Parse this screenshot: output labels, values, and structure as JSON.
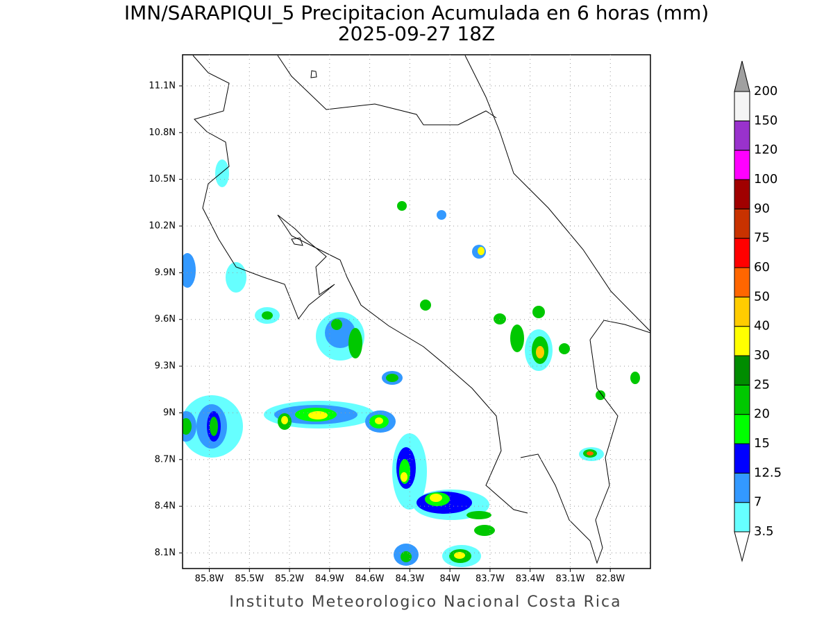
{
  "title": "IMN/SARAPIQUI_5 Precipitacion Acumulada en 6 horas (mm)",
  "subtitle": "2025-09-27 18Z",
  "footer": "Instituto Meteorologico Nacional Costa Rica",
  "map": {
    "xlim": [
      -86.0,
      -82.5
    ],
    "ylim": [
      8.0,
      11.3
    ],
    "yticks": [
      {
        "value": 11.1,
        "label": "11.1N"
      },
      {
        "value": 10.8,
        "label": "10.8N"
      },
      {
        "value": 10.5,
        "label": "10.5N"
      },
      {
        "value": 10.2,
        "label": "10.2N"
      },
      {
        "value": 9.9,
        "label": "9.9N"
      },
      {
        "value": 9.6,
        "label": "9.6N"
      },
      {
        "value": 9.3,
        "label": "9.3N"
      },
      {
        "value": 9.0,
        "label": "9N"
      },
      {
        "value": 8.7,
        "label": "8.7N"
      },
      {
        "value": 8.4,
        "label": "8.4N"
      },
      {
        "value": 8.1,
        "label": "8.1N"
      }
    ],
    "xticks": [
      {
        "value": -85.8,
        "label": "85.8W"
      },
      {
        "value": -85.5,
        "label": "85.5W"
      },
      {
        "value": -85.2,
        "label": "85.2W"
      },
      {
        "value": -84.9,
        "label": "84.9W"
      },
      {
        "value": -84.6,
        "label": "84.6W"
      },
      {
        "value": -84.3,
        "label": "84.3W"
      },
      {
        "value": -84.0,
        "label": "84W"
      },
      {
        "value": -83.7,
        "label": "83.7W"
      },
      {
        "value": -83.4,
        "label": "83.4W"
      },
      {
        "value": -83.1,
        "label": "83.1W"
      },
      {
        "value": -82.8,
        "label": "82.8W"
      }
    ],
    "grid": true
  },
  "colorbar": {
    "levels": [
      3.5,
      7,
      12.5,
      15,
      20,
      25,
      30,
      40,
      50,
      60,
      75,
      90,
      100,
      120,
      150,
      200
    ],
    "colors": [
      "#66ffff",
      "#3399ff",
      "#0000ff",
      "#00ff00",
      "#00c800",
      "#008c00",
      "#ffff00",
      "#ffcc00",
      "#ff6600",
      "#ff0000",
      "#c83200",
      "#a00000",
      "#ff00ff",
      "#9932cc",
      "#f5f5f5"
    ],
    "over_color": "#a0a0a0",
    "under_color": "#ffffff"
  }
}
